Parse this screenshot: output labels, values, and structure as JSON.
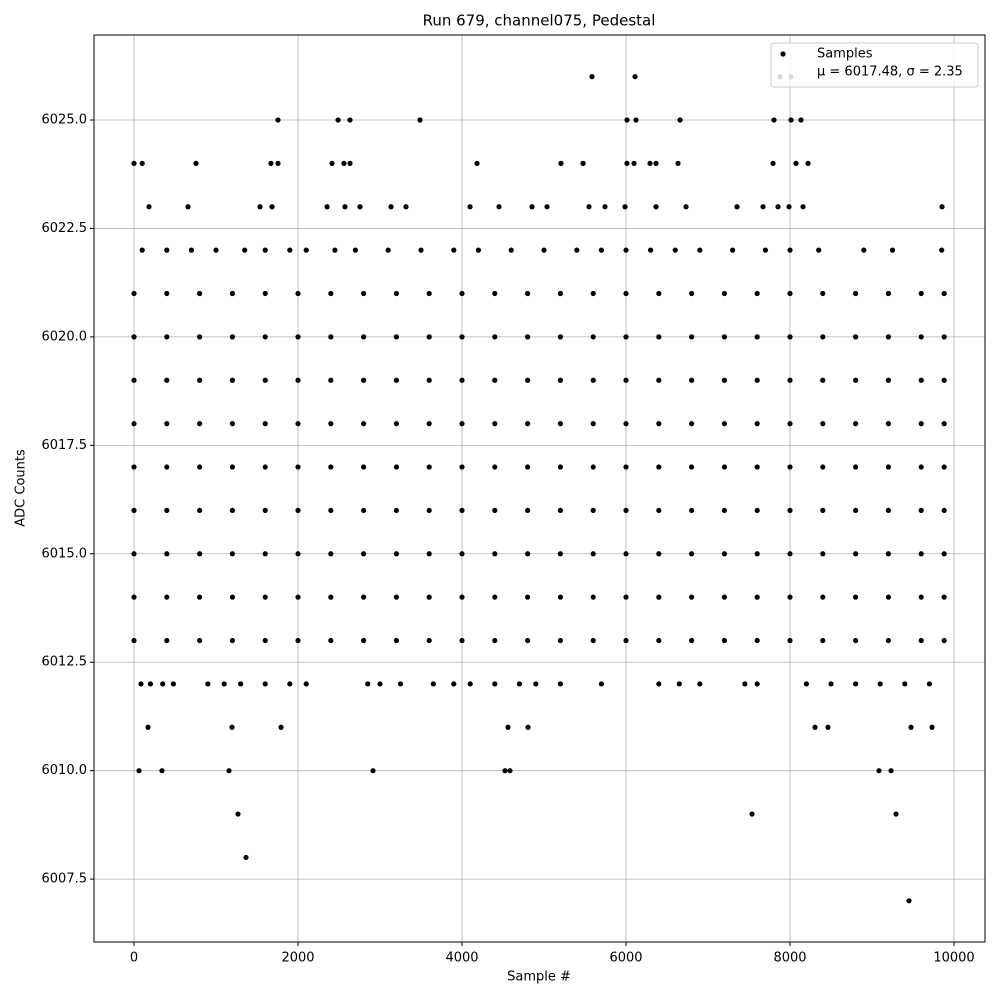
{
  "chart_data": {
    "type": "scatter",
    "title": "Run 679, channel075, Pedestal",
    "x_label": "Sample #",
    "y_label": "ADC Counts",
    "xlim": [
      -488,
      10378
    ],
    "ylim": [
      6006.05,
      6026.96
    ],
    "xticks": [
      0,
      2000,
      4000,
      6000,
      8000,
      10000
    ],
    "yticks": [
      6007.5,
      {
        "value": 6010,
        "label": "6010.0"
      },
      6012.5,
      {
        "value": 6015,
        "label": "6015.0"
      },
      6017.5,
      {
        "value": 6020,
        "label": "6020.0"
      },
      6022.5,
      {
        "value": 6025,
        "label": "6025.0"
      }
    ],
    "grid": true,
    "legend": "upper right",
    "legend_note": "μ = 6017.48, σ = 2.35",
    "x": [
      0,
      400,
      800,
      1200,
      1600,
      2000,
      2400,
      2800,
      3200,
      3600,
      4000,
      4400,
      4800,
      5200,
      5600,
      6000,
      6400,
      6800,
      7200,
      7600,
      8000,
      8400,
      8800,
      9200,
      9600,
      9880,
      0,
      400,
      800,
      1200,
      1600,
      2000,
      2400,
      2800,
      3200,
      3600,
      4000,
      4400,
      4800,
      5200,
      5600,
      6000,
      6400,
      6800,
      7200,
      7600,
      8000,
      8400,
      8800,
      9200,
      9600,
      9880,
      0,
      400,
      800,
      1200,
      1600,
      2000,
      2400,
      2800,
      3200,
      3600,
      4000,
      4400,
      4800,
      5200,
      5600,
      6000,
      6400,
      6800,
      7200,
      7600,
      8000,
      8400,
      8800,
      9200,
      9600,
      9880,
      0,
      400,
      800,
      1200,
      1600,
      2000,
      2400,
      2800,
      3200,
      3600,
      4000,
      4400,
      4800,
      5200,
      5600,
      6000,
      6400,
      6800,
      7200,
      7600,
      8000,
      8400,
      8800,
      9200,
      9600,
      9880,
      0,
      400,
      800,
      1200,
      1600,
      2000,
      2400,
      2800,
      3200,
      3600,
      4000,
      4400,
      4800,
      5200,
      5600,
      6000,
      6400,
      6800,
      7200,
      7600,
      8000,
      8400,
      8800,
      9200,
      9600,
      9880,
      0,
      400,
      800,
      1200,
      1600,
      2000,
      2400,
      2800,
      3200,
      3600,
      4000,
      4400,
      4800,
      5200,
      5600,
      6000,
      6400,
      6800,
      7200,
      7600,
      8000,
      8400,
      8800,
      9200,
      9600,
      9880,
      0,
      400,
      800,
      1200,
      1600,
      2000,
      2400,
      2800,
      3200,
      3600,
      4000,
      4400,
      4800,
      5200,
      5600,
      6000,
      6400,
      6800,
      7200,
      7600,
      8000,
      8400,
      8800,
      9200,
      9600,
      9880,
      0,
      400,
      800,
      1200,
      1600,
      2000,
      2400,
      2800,
      3200,
      3600,
      4000,
      4400,
      4800,
      5200,
      5600,
      6000,
      6400,
      6800,
      7200,
      7600,
      8000,
      8400,
      8800,
      9200,
      9600,
      9880,
      0,
      400,
      800,
      1200,
      1600,
      2000,
      2400,
      2800,
      3200,
      3600,
      4000,
      4400,
      4800,
      5200,
      5600,
      6000,
      6400,
      6800,
      7200,
      7600,
      8000,
      8400,
      8800,
      9200,
      9600,
      9880,
      100,
      400,
      700,
      1000,
      1350,
      1600,
      1900,
      2100,
      2450,
      2700,
      3100,
      3500,
      3900,
      4200,
      4600,
      5000,
      5400,
      5700,
      6000,
      6300,
      6600,
      6900,
      7300,
      7700,
      8000,
      8350,
      8900,
      9250,
      9850,
      85,
      200,
      350,
      480,
      900,
      1100,
      1300,
      1600,
      1900,
      2100,
      2850,
      3000,
      3250,
      3650,
      3900,
      4100,
      4400,
      4700,
      4900,
      5200,
      5700,
      6400,
      6650,
      6900,
      7450,
      7600,
      8200,
      8500,
      8800,
      9100,
      9400,
      9700,
      183,
      659,
      1537,
      1683,
      2354,
      2573,
      2756,
      3134,
      3317,
      4098,
      4451,
      4854,
      5037,
      5549,
      5744,
      5988,
      6366,
      6732,
      7354,
      7671,
      7854,
      7988,
      8159,
      9854,
      0,
      100,
      756,
      1670,
      1756,
      2415,
      2560,
      2634,
      4183,
      5207,
      5476,
      6012,
      6098,
      6293,
      6366,
      6634,
      7793,
      8073,
      8220,
      1756,
      2488,
      2634,
      3488,
      6012,
      6122,
      6659,
      7805,
      8012,
      8134,
      5585,
      6110,
      7878,
      8012,
      171,
      1195,
      1793,
      4561,
      4805,
      8305,
      8463,
      9476,
      9732,
      61,
      341,
      1159,
      2915,
      4524,
      4585,
      9085,
      9232,
      1268,
      7537,
      9293,
      1366,
      9451
    ],
    "series": [
      {
        "name": "Samples",
        "color": "#000000",
        "values": [
          6021,
          6021,
          6021,
          6021,
          6021,
          6021,
          6021,
          6021,
          6021,
          6021,
          6021,
          6021,
          6021,
          6021,
          6021,
          6021,
          6021,
          6021,
          6021,
          6021,
          6021,
          6021,
          6021,
          6021,
          6021,
          6021,
          6020,
          6020,
          6020,
          6020,
          6020,
          6020,
          6020,
          6020,
          6020,
          6020,
          6020,
          6020,
          6020,
          6020,
          6020,
          6020,
          6020,
          6020,
          6020,
          6020,
          6020,
          6020,
          6020,
          6020,
          6020,
          6020,
          6019,
          6019,
          6019,
          6019,
          6019,
          6019,
          6019,
          6019,
          6019,
          6019,
          6019,
          6019,
          6019,
          6019,
          6019,
          6019,
          6019,
          6019,
          6019,
          6019,
          6019,
          6019,
          6019,
          6019,
          6019,
          6019,
          6018,
          6018,
          6018,
          6018,
          6018,
          6018,
          6018,
          6018,
          6018,
          6018,
          6018,
          6018,
          6018,
          6018,
          6018,
          6018,
          6018,
          6018,
          6018,
          6018,
          6018,
          6018,
          6018,
          6018,
          6018,
          6018,
          6017,
          6017,
          6017,
          6017,
          6017,
          6017,
          6017,
          6017,
          6017,
          6017,
          6017,
          6017,
          6017,
          6017,
          6017,
          6017,
          6017,
          6017,
          6017,
          6017,
          6017,
          6017,
          6017,
          6017,
          6017,
          6017,
          6016,
          6016,
          6016,
          6016,
          6016,
          6016,
          6016,
          6016,
          6016,
          6016,
          6016,
          6016,
          6016,
          6016,
          6016,
          6016,
          6016,
          6016,
          6016,
          6016,
          6016,
          6016,
          6016,
          6016,
          6016,
          6016,
          6015,
          6015,
          6015,
          6015,
          6015,
          6015,
          6015,
          6015,
          6015,
          6015,
          6015,
          6015,
          6015,
          6015,
          6015,
          6015,
          6015,
          6015,
          6015,
          6015,
          6015,
          6015,
          6015,
          6015,
          6015,
          6015,
          6014,
          6014,
          6014,
          6014,
          6014,
          6014,
          6014,
          6014,
          6014,
          6014,
          6014,
          6014,
          6014,
          6014,
          6014,
          6014,
          6014,
          6014,
          6014,
          6014,
          6014,
          6014,
          6014,
          6014,
          6014,
          6014,
          6013,
          6013,
          6013,
          6013,
          6013,
          6013,
          6013,
          6013,
          6013,
          6013,
          6013,
          6013,
          6013,
          6013,
          6013,
          6013,
          6013,
          6013,
          6013,
          6013,
          6013,
          6013,
          6013,
          6013,
          6013,
          6013,
          6022,
          6022,
          6022,
          6022,
          6022,
          6022,
          6022,
          6022,
          6022,
          6022,
          6022,
          6022,
          6022,
          6022,
          6022,
          6022,
          6022,
          6022,
          6022,
          6022,
          6022,
          6022,
          6022,
          6022,
          6022,
          6022,
          6022,
          6022,
          6022,
          6012,
          6012,
          6012,
          6012,
          6012,
          6012,
          6012,
          6012,
          6012,
          6012,
          6012,
          6012,
          6012,
          6012,
          6012,
          6012,
          6012,
          6012,
          6012,
          6012,
          6012,
          6012,
          6012,
          6012,
          6012,
          6012,
          6012,
          6012,
          6012,
          6012,
          6012,
          6012,
          6023,
          6023,
          6023,
          6023,
          6023,
          6023,
          6023,
          6023,
          6023,
          6023,
          6023,
          6023,
          6023,
          6023,
          6023,
          6023,
          6023,
          6023,
          6023,
          6023,
          6023,
          6023,
          6023,
          6023,
          6024,
          6024,
          6024,
          6024,
          6024,
          6024,
          6024,
          6024,
          6024,
          6024,
          6024,
          6024,
          6024,
          6024,
          6024,
          6024,
          6024,
          6024,
          6024,
          6025,
          6025,
          6025,
          6025,
          6025,
          6025,
          6025,
          6025,
          6025,
          6025,
          6026,
          6026,
          6026,
          6026,
          6011,
          6011,
          6011,
          6011,
          6011,
          6011,
          6011,
          6011,
          6011,
          6010,
          6010,
          6010,
          6010,
          6010,
          6010,
          6010,
          6010,
          6009,
          6009,
          6009,
          6008,
          6007
        ]
      }
    ]
  }
}
